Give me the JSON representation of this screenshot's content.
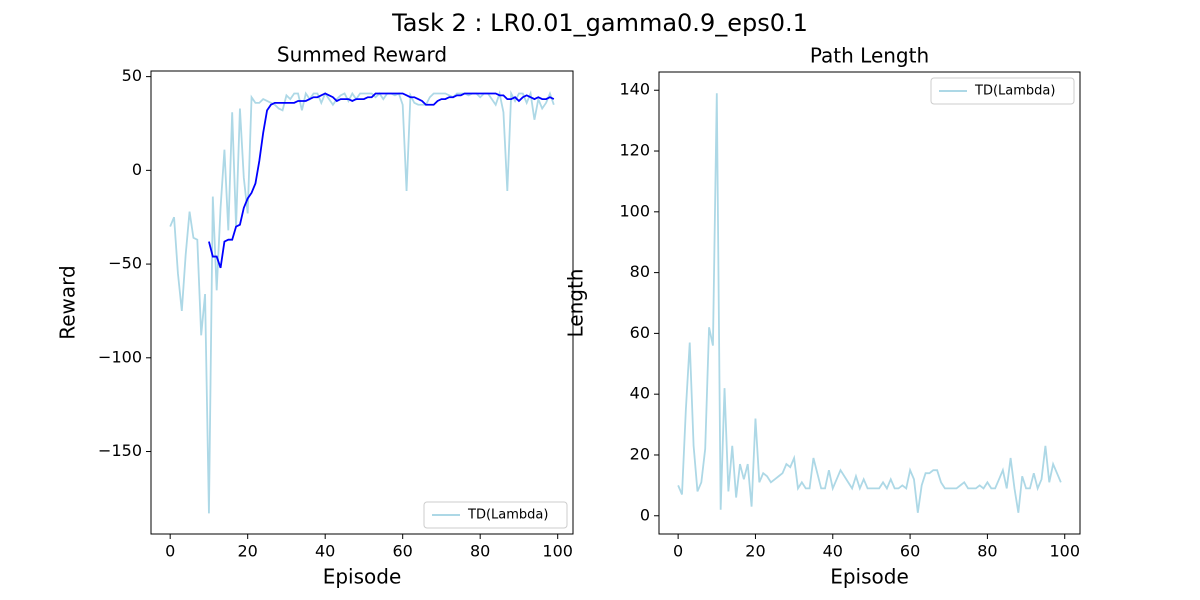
{
  "title": "Task 2 : LR0.01_gamma0.9_eps0.1",
  "chart_data": [
    {
      "type": "line",
      "title": "Summed Reward",
      "x_label": "Episode",
      "y_label": "Reward",
      "x": [
        0,
        1,
        2,
        3,
        4,
        5,
        6,
        7,
        8,
        9,
        10,
        11,
        12,
        13,
        14,
        15,
        16,
        17,
        18,
        19,
        20,
        21,
        22,
        23,
        24,
        25,
        26,
        27,
        28,
        29,
        30,
        31,
        32,
        33,
        34,
        35,
        36,
        37,
        38,
        39,
        40,
        41,
        42,
        43,
        44,
        45,
        46,
        47,
        48,
        49,
        50,
        51,
        52,
        53,
        54,
        55,
        56,
        57,
        58,
        59,
        60,
        61,
        62,
        63,
        64,
        65,
        66,
        67,
        68,
        69,
        70,
        71,
        72,
        73,
        74,
        75,
        76,
        77,
        78,
        79,
        80,
        81,
        82,
        83,
        84,
        85,
        86,
        87,
        88,
        89,
        90,
        91,
        92,
        93,
        94,
        95,
        96,
        97,
        98,
        99
      ],
      "series": [
        {
          "name": "TD(Lambda)",
          "color": "#add8e6",
          "values": [
            -30,
            -25,
            -55,
            -75,
            -45,
            -22,
            -36,
            -37,
            -88,
            -66,
            -183,
            -14,
            -64,
            -20,
            11,
            -32,
            31,
            -30,
            33,
            -4,
            -23,
            39,
            36,
            36,
            38,
            37,
            36,
            35,
            33,
            32,
            40,
            38,
            41,
            41,
            32,
            41,
            38,
            41,
            41,
            36,
            41,
            38,
            35,
            38,
            40,
            41,
            37,
            41,
            38,
            41,
            41,
            41,
            41,
            39,
            41,
            38,
            41,
            41,
            40,
            41,
            35,
            -11,
            40,
            36,
            35,
            35,
            35,
            39,
            41,
            41,
            41,
            41,
            40,
            39,
            41,
            41,
            41,
            40,
            41,
            41,
            39,
            41,
            41,
            38,
            35,
            41,
            31,
            -11,
            41,
            37,
            41,
            41,
            36,
            41,
            27,
            38,
            33,
            36,
            41,
            35
          ]
        },
        {
          "color": "#0000ff",
          "values": [
            null,
            null,
            null,
            null,
            null,
            null,
            null,
            null,
            null,
            null,
            -38,
            -46,
            -46,
            -52,
            -38,
            -37,
            -37,
            -30,
            -29,
            -20,
            -15,
            -12,
            -7,
            5,
            20,
            32,
            35,
            36,
            36,
            36,
            36,
            36,
            36,
            37,
            37,
            37,
            38,
            39,
            39,
            40,
            41,
            40,
            39,
            37,
            38,
            38,
            38,
            37,
            38,
            38,
            38,
            39,
            39,
            41,
            41,
            41,
            41,
            41,
            41,
            41,
            41,
            40,
            39,
            39,
            38,
            37,
            35,
            35,
            35,
            37,
            38,
            38,
            39,
            39,
            40,
            40,
            41,
            41,
            41,
            41,
            41,
            41,
            41,
            41,
            41,
            40,
            40,
            38,
            38,
            39,
            37,
            39,
            40,
            39,
            38,
            39,
            38,
            38,
            39,
            38
          ]
        }
      ],
      "xlim": [
        -4.95,
        103.95
      ],
      "xticks": [
        0,
        20,
        40,
        60,
        80,
        100
      ],
      "ylim": [
        -194,
        53
      ],
      "yticks": [
        {
          "value": -150,
          "label": "−150"
        },
        {
          "value": -100,
          "label": "−100"
        },
        {
          "value": -50,
          "label": "−50"
        },
        0,
        50
      ],
      "legend": "lower right"
    },
    {
      "type": "line",
      "title": "Path Length",
      "x_label": "Episode",
      "y_label": "Length",
      "x": [
        0,
        1,
        2,
        3,
        4,
        5,
        6,
        7,
        8,
        9,
        10,
        11,
        12,
        13,
        14,
        15,
        16,
        17,
        18,
        19,
        20,
        21,
        22,
        23,
        24,
        25,
        26,
        27,
        28,
        29,
        30,
        31,
        32,
        33,
        34,
        35,
        36,
        37,
        38,
        39,
        40,
        41,
        42,
        43,
        44,
        45,
        46,
        47,
        48,
        49,
        50,
        51,
        52,
        53,
        54,
        55,
        56,
        57,
        58,
        59,
        60,
        61,
        62,
        63,
        64,
        65,
        66,
        67,
        68,
        69,
        70,
        71,
        72,
        73,
        74,
        75,
        76,
        77,
        78,
        79,
        80,
        81,
        82,
        83,
        84,
        85,
        86,
        87,
        88,
        89,
        90,
        91,
        92,
        93,
        94,
        95,
        96,
        97,
        98,
        99
      ],
      "series": [
        {
          "name": "TD(Lambda)",
          "color": "#add8e6",
          "values": [
            10,
            7,
            35,
            57,
            23,
            8,
            11,
            22,
            62,
            56,
            139,
            2,
            42,
            8,
            23,
            6,
            17,
            12,
            17,
            3,
            32,
            11,
            14,
            13,
            11,
            12,
            13,
            14,
            17,
            16,
            19,
            9,
            11,
            9,
            9,
            19,
            14,
            9,
            9,
            15,
            9,
            12,
            15,
            13,
            11,
            9,
            13,
            9,
            12,
            9,
            9,
            9,
            9,
            11,
            9,
            12,
            9,
            9,
            10,
            9,
            15,
            12,
            1,
            10,
            14,
            14,
            15,
            15,
            11,
            9,
            9,
            9,
            9,
            10,
            11,
            9,
            9,
            9,
            10,
            9,
            11,
            9,
            9,
            12,
            15,
            9,
            19,
            9,
            1,
            13,
            9,
            9,
            14,
            9,
            12,
            23,
            11,
            17,
            14,
            11
          ]
        }
      ],
      "xlim": [
        -4.95,
        103.95
      ],
      "xticks": [
        0,
        20,
        40,
        60,
        80,
        100
      ],
      "ylim": [
        -6,
        146
      ],
      "yticks": [
        0,
        20,
        40,
        60,
        80,
        100,
        120,
        140
      ],
      "legend": "upper right"
    }
  ]
}
